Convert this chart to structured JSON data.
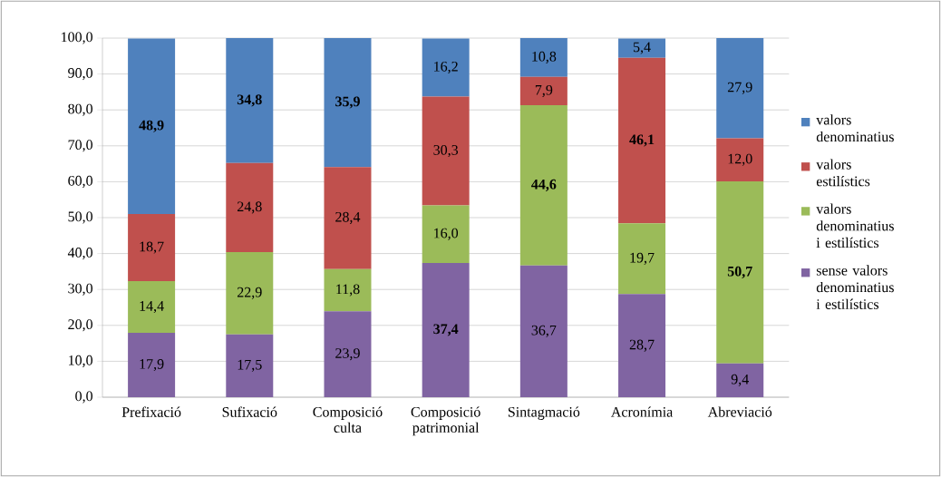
{
  "chart_data": {
    "type": "bar",
    "stacked": true,
    "categories": [
      "Prefixació",
      "Sufixació",
      "Composició culta",
      "Composició patrimonial",
      "Sintagmació",
      "Acronímia",
      "Abreviació"
    ],
    "series": [
      {
        "name": "sense valors denominatius i estilístics",
        "color": "#8064a2",
        "values": [
          17.9,
          17.5,
          23.9,
          37.4,
          36.7,
          28.7,
          9.4
        ],
        "value_labels": [
          "17,9",
          "17,5",
          "23,9",
          "37,4",
          "36,7",
          "28,7",
          "9,4"
        ]
      },
      {
        "name": "valors denominatius i estilístics",
        "color": "#9bbb59",
        "values": [
          14.4,
          22.9,
          11.8,
          16.0,
          44.6,
          19.7,
          50.7
        ],
        "value_labels": [
          "14,4",
          "22,9",
          "11,8",
          "16,0",
          "44,6",
          "19,7",
          "50,7"
        ]
      },
      {
        "name": "valors estilístics",
        "color": "#c0504d",
        "values": [
          18.7,
          24.8,
          28.4,
          30.3,
          7.9,
          46.1,
          12.0
        ],
        "value_labels": [
          "18,7",
          "24,8",
          "28,4",
          "30,3",
          "7,9",
          "46,1",
          "12,0"
        ]
      },
      {
        "name": "valors denominatius",
        "color": "#4f81bd",
        "values": [
          48.9,
          34.8,
          35.9,
          16.2,
          10.8,
          5.4,
          27.9
        ],
        "value_labels": [
          "48,9",
          "34,8",
          "35,9",
          "16,2",
          "10,8",
          "5,4",
          "27,9"
        ]
      }
    ],
    "ylim": [
      0,
      100
    ],
    "yticks": [
      {
        "value": 0,
        "label": "0,0"
      },
      {
        "value": 10,
        "label": "10,0"
      },
      {
        "value": 20,
        "label": "20,0"
      },
      {
        "value": 30,
        "label": "30,0"
      },
      {
        "value": 40,
        "label": "40,0"
      },
      {
        "value": 50,
        "label": "50,0"
      },
      {
        "value": 60,
        "label": "60,0"
      },
      {
        "value": 70,
        "label": "70,0"
      },
      {
        "value": 80,
        "label": "80,0"
      },
      {
        "value": 90,
        "label": "90,0"
      },
      {
        "value": 100,
        "label": "100,0"
      }
    ],
    "grid": "y",
    "legend": "right"
  }
}
